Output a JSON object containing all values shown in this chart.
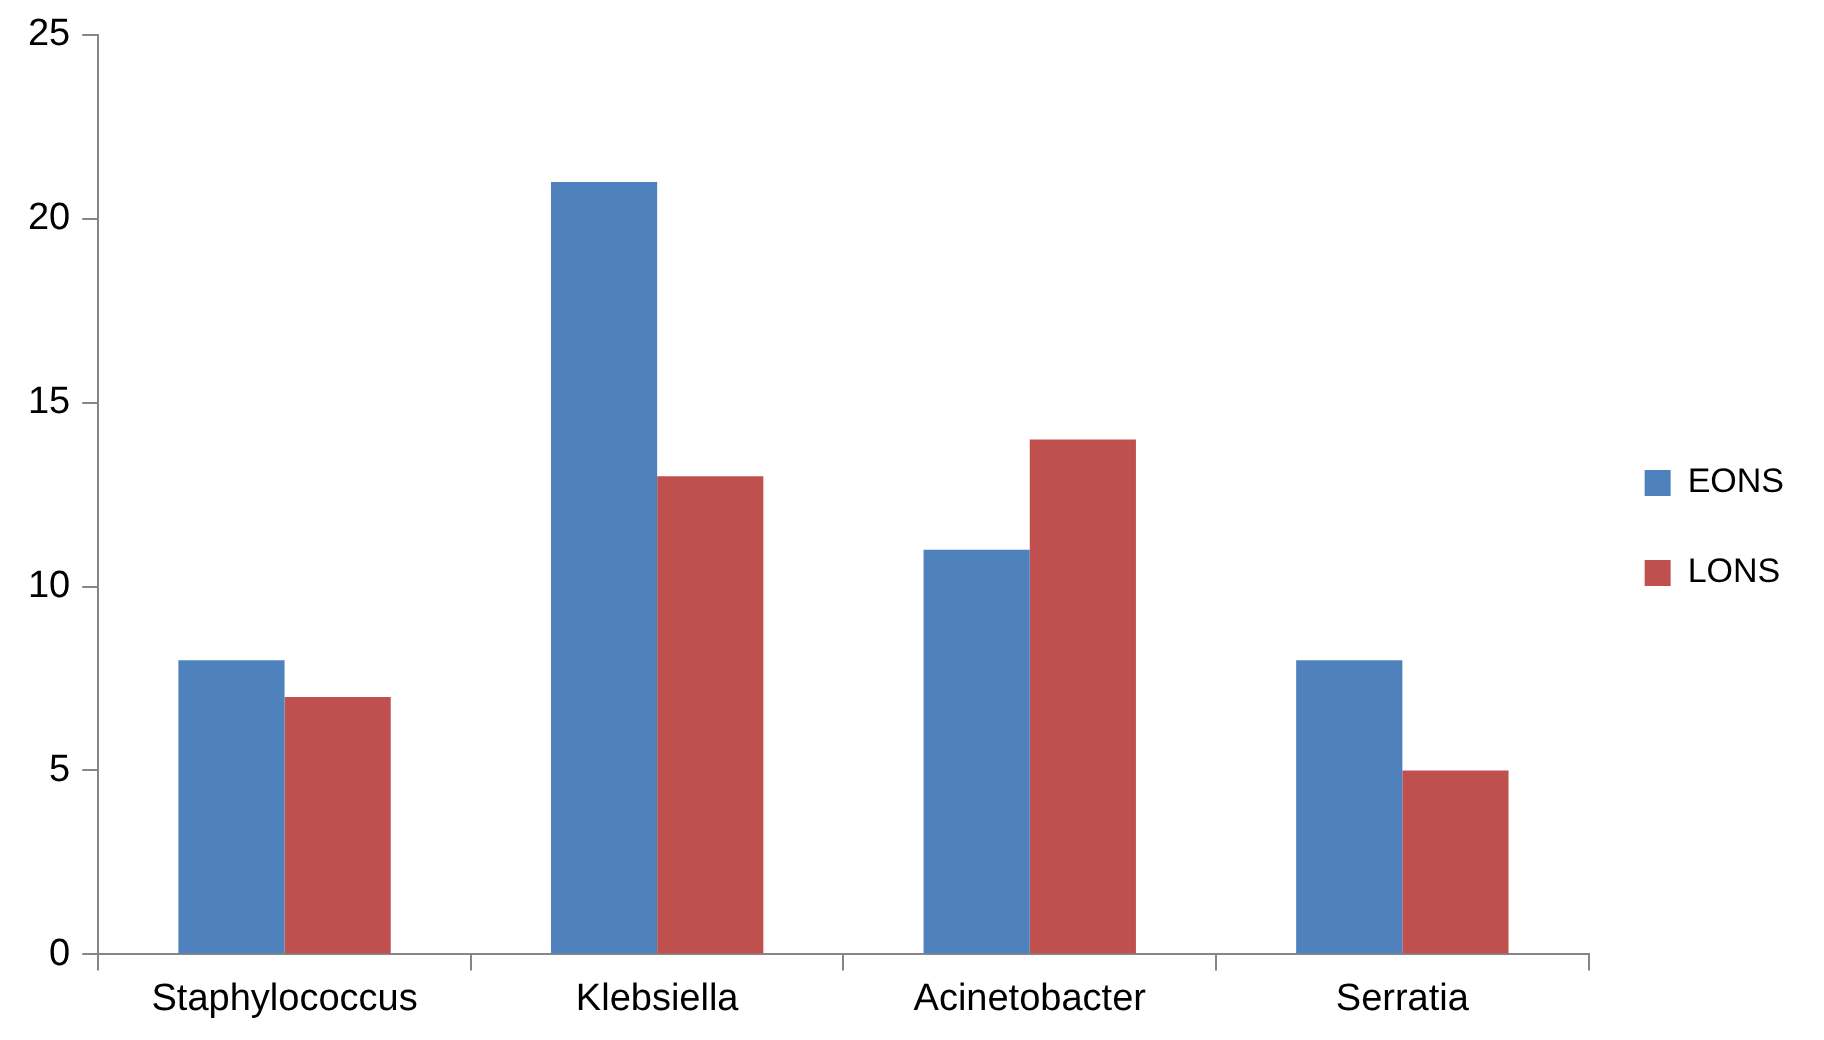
{
  "chart_data": {
    "type": "bar",
    "categories": [
      "Staphylococcus",
      "Klebsiella",
      "Acinetobacter",
      "Serratia"
    ],
    "series": [
      {
        "name": "EONS",
        "color": "#4f81bd",
        "values": [
          8,
          21,
          11,
          8
        ]
      },
      {
        "name": "LONS",
        "color": "#c0504d",
        "values": [
          7,
          13,
          14,
          5
        ]
      }
    ],
    "ylim": [
      0,
      25
    ],
    "yticks": [
      0,
      5,
      10,
      15,
      20,
      25
    ],
    "grid": false,
    "legend": "right"
  }
}
